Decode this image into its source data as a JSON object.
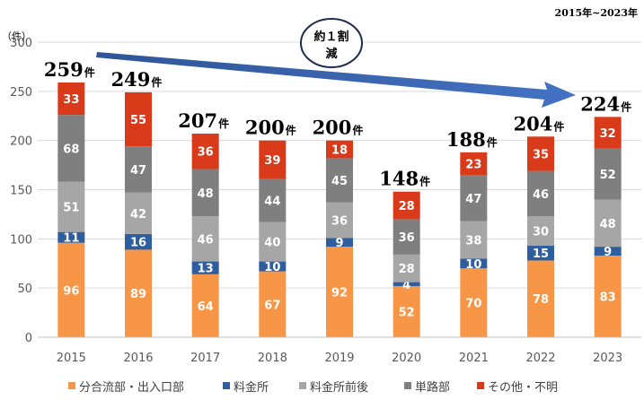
{
  "chart_data": {
    "type": "bar",
    "stacked": true,
    "unit_label": "（件）",
    "range_label": "2015年~2023年",
    "annotation": {
      "line1": "約１割",
      "line2": "減"
    },
    "total_suffix": "件",
    "categories": [
      "2015",
      "2016",
      "2017",
      "2018",
      "2019",
      "2020",
      "2021",
      "2022",
      "2023"
    ],
    "totals": [
      259,
      249,
      207,
      200,
      200,
      148,
      188,
      204,
      224
    ],
    "ylim": [
      0,
      300
    ],
    "yticks": [
      "0",
      "50",
      "100",
      "150",
      "200",
      "250",
      "300"
    ],
    "grid": true,
    "legend_position": "bottom",
    "series": [
      {
        "name": "分合流部・出入口部",
        "color": "#F79646",
        "values": [
          96,
          89,
          64,
          67,
          92,
          52,
          70,
          78,
          83
        ]
      },
      {
        "name": "料金所",
        "color": "#2E5E9E",
        "values": [
          11,
          16,
          13,
          10,
          9,
          4,
          10,
          15,
          9
        ]
      },
      {
        "name": "料金所前後",
        "color": "#A6A6A6",
        "values": [
          51,
          42,
          46,
          40,
          36,
          28,
          38,
          30,
          48
        ]
      },
      {
        "name": "単路部",
        "color": "#7F7F7F",
        "values": [
          68,
          47,
          48,
          44,
          45,
          36,
          47,
          46,
          52
        ]
      },
      {
        "name": "その他・不明",
        "color": "#D93B1A",
        "values": [
          33,
          55,
          36,
          39,
          18,
          28,
          23,
          35,
          32
        ]
      }
    ]
  }
}
